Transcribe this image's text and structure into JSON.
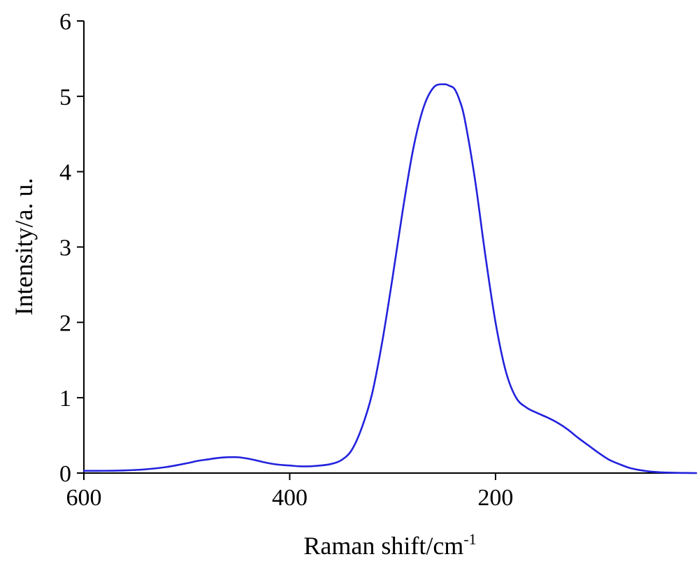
{
  "chart_data": {
    "type": "line",
    "title": "",
    "xlabel": "Raman shift/cm",
    "xlabel_superscript": "-1",
    "ylabel": "Intensity/a. u.",
    "xlim": [
      600,
      5
    ],
    "x_reversed": true,
    "ylim": [
      0,
      6
    ],
    "grid": false,
    "legend": "none",
    "x_ticks": [
      600,
      400,
      200
    ],
    "y_ticks": [
      0,
      1,
      2,
      3,
      4,
      5,
      6
    ],
    "x_tick_labels": [
      "600",
      "400",
      "200"
    ],
    "y_tick_labels": [
      "0",
      "1",
      "2",
      "3",
      "4",
      "5",
      "6"
    ],
    "series": [
      {
        "color": "#2222dd",
        "x": [
          600,
          580,
          560,
          540,
          520,
          500,
          490,
          480,
          470,
          460,
          450,
          440,
          430,
          420,
          410,
          400,
          390,
          380,
          370,
          360,
          350,
          340,
          330,
          320,
          310,
          300,
          290,
          280,
          270,
          260,
          250,
          245,
          240,
          235,
          230,
          220,
          210,
          200,
          190,
          180,
          170,
          160,
          150,
          140,
          130,
          120,
          110,
          100,
          90,
          80,
          70,
          60,
          50,
          40,
          30,
          20,
          10,
          5
        ],
        "y": [
          0.03,
          0.03,
          0.035,
          0.05,
          0.08,
          0.13,
          0.16,
          0.18,
          0.2,
          0.21,
          0.21,
          0.19,
          0.16,
          0.13,
          0.11,
          0.1,
          0.09,
          0.09,
          0.1,
          0.12,
          0.17,
          0.3,
          0.6,
          1.05,
          1.75,
          2.6,
          3.5,
          4.3,
          4.85,
          5.12,
          5.16,
          5.14,
          5.1,
          4.95,
          4.7,
          3.9,
          2.9,
          2.0,
          1.35,
          1.0,
          0.87,
          0.8,
          0.74,
          0.67,
          0.58,
          0.47,
          0.37,
          0.27,
          0.18,
          0.12,
          0.07,
          0.04,
          0.02,
          0.01,
          0.005,
          0.002,
          0.001,
          0.0
        ]
      }
    ]
  }
}
